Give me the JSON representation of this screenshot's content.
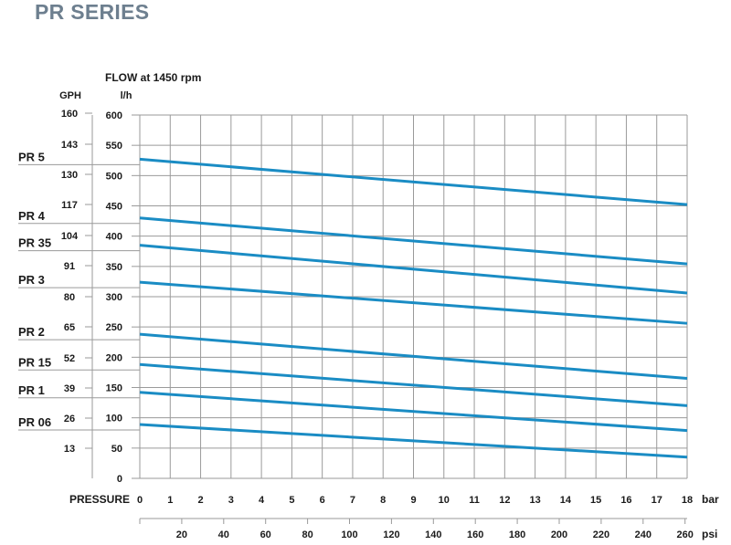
{
  "page": {
    "title": "PR SERIES"
  },
  "colors": {
    "line": "#1a8cc4",
    "grid": "#9a9a9a",
    "title": "#6d7f8f",
    "text": "#1a1a1a"
  },
  "chart_data": {
    "type": "line",
    "title": "FLOW at 1450 rpm",
    "xlabel": "PRESSURE",
    "x_unit": "bar",
    "x2_unit": "psi",
    "y_unit": "l/h",
    "y2_unit": "GPH",
    "xlim": [
      0,
      18
    ],
    "ylim": [
      0,
      600
    ],
    "x_ticks": [
      0,
      1,
      2,
      3,
      4,
      5,
      6,
      7,
      8,
      9,
      10,
      11,
      12,
      13,
      14,
      15,
      16,
      17,
      18
    ],
    "y_ticks": [
      0,
      50,
      100,
      150,
      200,
      250,
      300,
      350,
      400,
      450,
      500,
      550,
      600
    ],
    "psi_ticks": [
      20,
      40,
      60,
      80,
      100,
      120,
      140,
      160,
      180,
      200,
      220,
      240,
      260
    ],
    "gph_ticks": [
      160,
      143,
      130,
      117,
      104,
      91,
      80,
      65,
      52,
      39,
      26,
      13
    ],
    "series": [
      {
        "name": "PR 5",
        "x": [
          0,
          18
        ],
        "values": [
          527,
          452
        ]
      },
      {
        "name": "PR 4",
        "x": [
          0,
          18
        ],
        "values": [
          430,
          354
        ]
      },
      {
        "name": "PR 35",
        "x": [
          0,
          18
        ],
        "values": [
          385,
          306
        ]
      },
      {
        "name": "PR 3",
        "x": [
          0,
          18
        ],
        "values": [
          324,
          256
        ]
      },
      {
        "name": "PR 2",
        "x": [
          0,
          18
        ],
        "values": [
          238,
          165
        ]
      },
      {
        "name": "PR 15",
        "x": [
          0,
          18
        ],
        "values": [
          188,
          120
        ]
      },
      {
        "name": "PR 1",
        "x": [
          0,
          18
        ],
        "values": [
          142,
          79
        ]
      },
      {
        "name": "PR 06",
        "x": [
          0,
          18
        ],
        "values": [
          89,
          35
        ]
      }
    ]
  }
}
